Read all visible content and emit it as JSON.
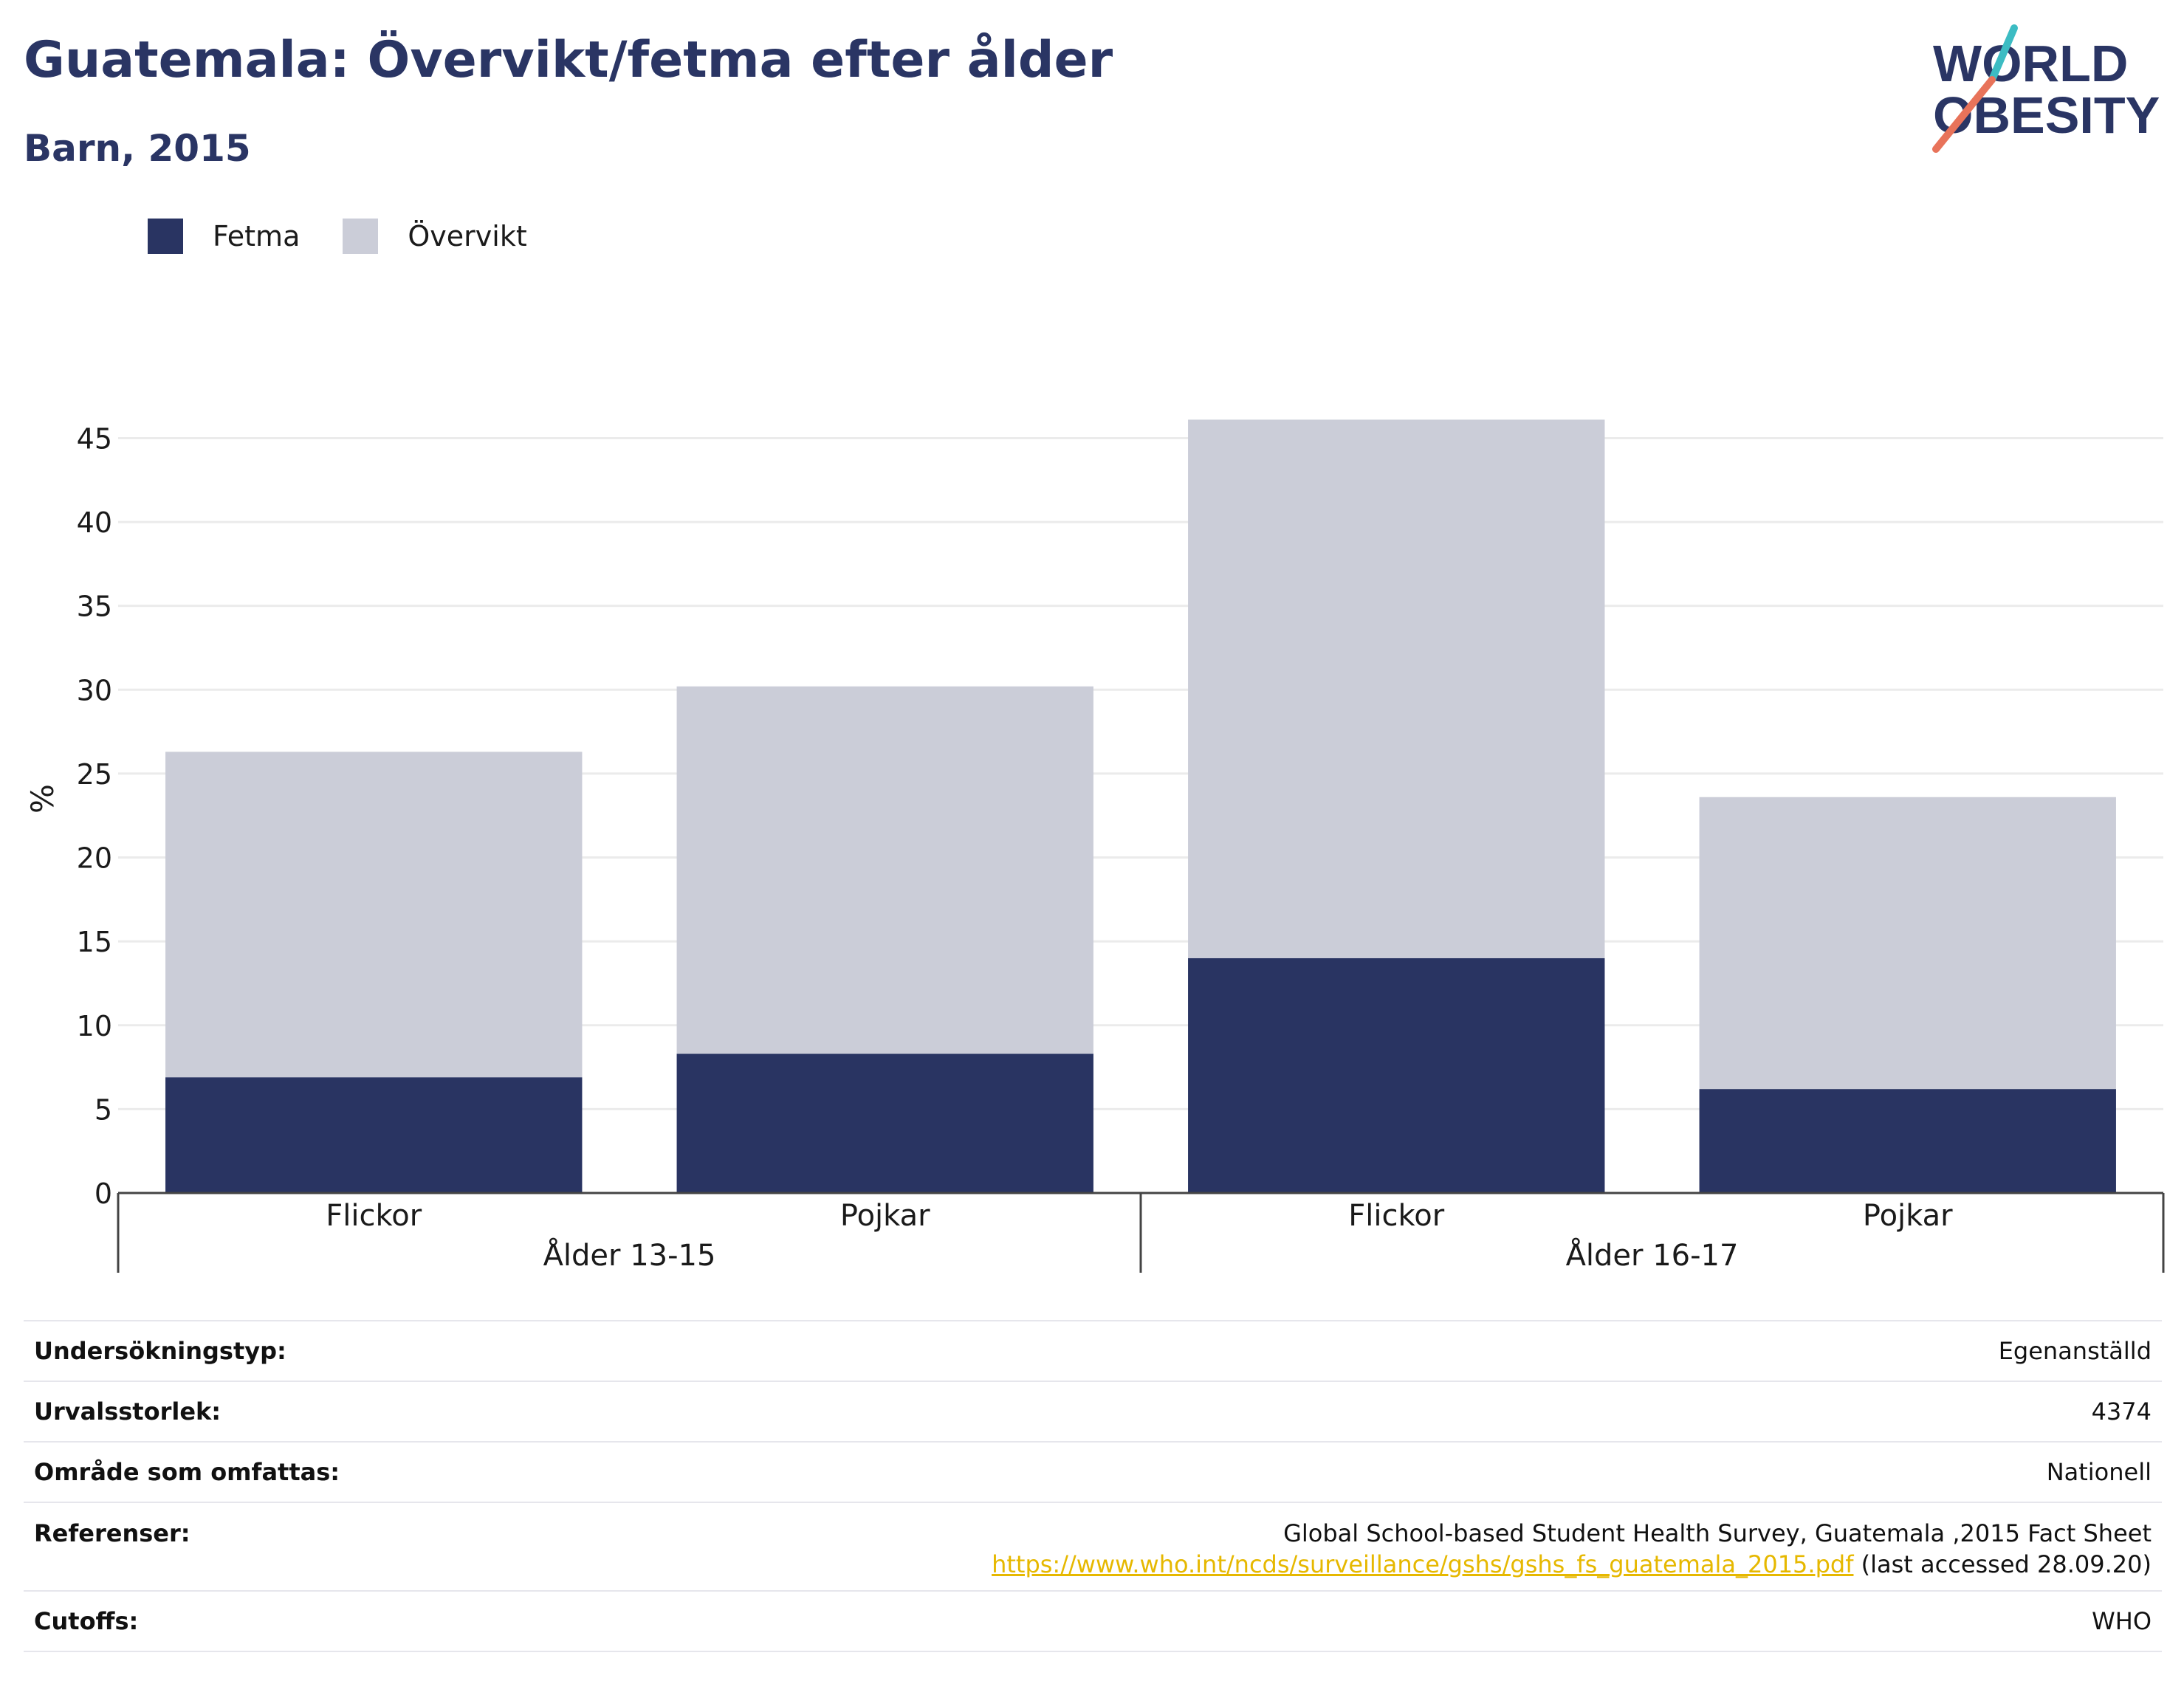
{
  "header": {
    "title": "Guatemala: Övervikt/fetma efter ålder",
    "subtitle": "Barn, 2015",
    "logo_line1": "WORLD",
    "logo_line2": "OBESITY"
  },
  "legend": [
    {
      "name": "Fetma",
      "color": "#293462"
    },
    {
      "name": "Övervikt",
      "color": "#cbcdd8"
    }
  ],
  "chart_data": {
    "type": "bar",
    "stacked": true,
    "categories": [
      "Flickor",
      "Pojkar",
      "Flickor",
      "Pojkar"
    ],
    "groups": [
      {
        "label": "Ålder 13-15",
        "categories": [
          "Flickor",
          "Pojkar"
        ]
      },
      {
        "label": "Ålder 16-17",
        "categories": [
          "Flickor",
          "Pojkar"
        ]
      }
    ],
    "series": [
      {
        "name": "Fetma",
        "color": "#293462",
        "values": [
          6.9,
          8.3,
          14.0,
          6.2
        ]
      },
      {
        "name": "Övervikt",
        "color": "#cbcdd8",
        "values": [
          19.4,
          21.9,
          32.1,
          17.4
        ]
      }
    ],
    "ylabel": "%",
    "ylim": [
      0,
      47
    ],
    "yticks": [
      0,
      5,
      10,
      15,
      20,
      25,
      30,
      35,
      40,
      45
    ],
    "grid": true,
    "legend_position": "top-left"
  },
  "info": {
    "survey_type": {
      "label": "Undersökningstyp:",
      "value": "Egenanställd"
    },
    "sample_size": {
      "label": "Urvalsstorlek:",
      "value": "4374"
    },
    "area": {
      "label": "Område som omfattas:",
      "value": "Nationell"
    },
    "references": {
      "label": "Referenser:",
      "line1": "Global School-based Student Health Survey, Guatemala ,2015 Fact Sheet",
      "link": "https://www.who.int/ncds/surveillance/gshs/gshs_fs_guatemala_2015.pdf",
      "suffix": " (last accessed 28.09.20)"
    },
    "cutoffs": {
      "label": "Cutoffs:",
      "value": "WHO"
    }
  }
}
